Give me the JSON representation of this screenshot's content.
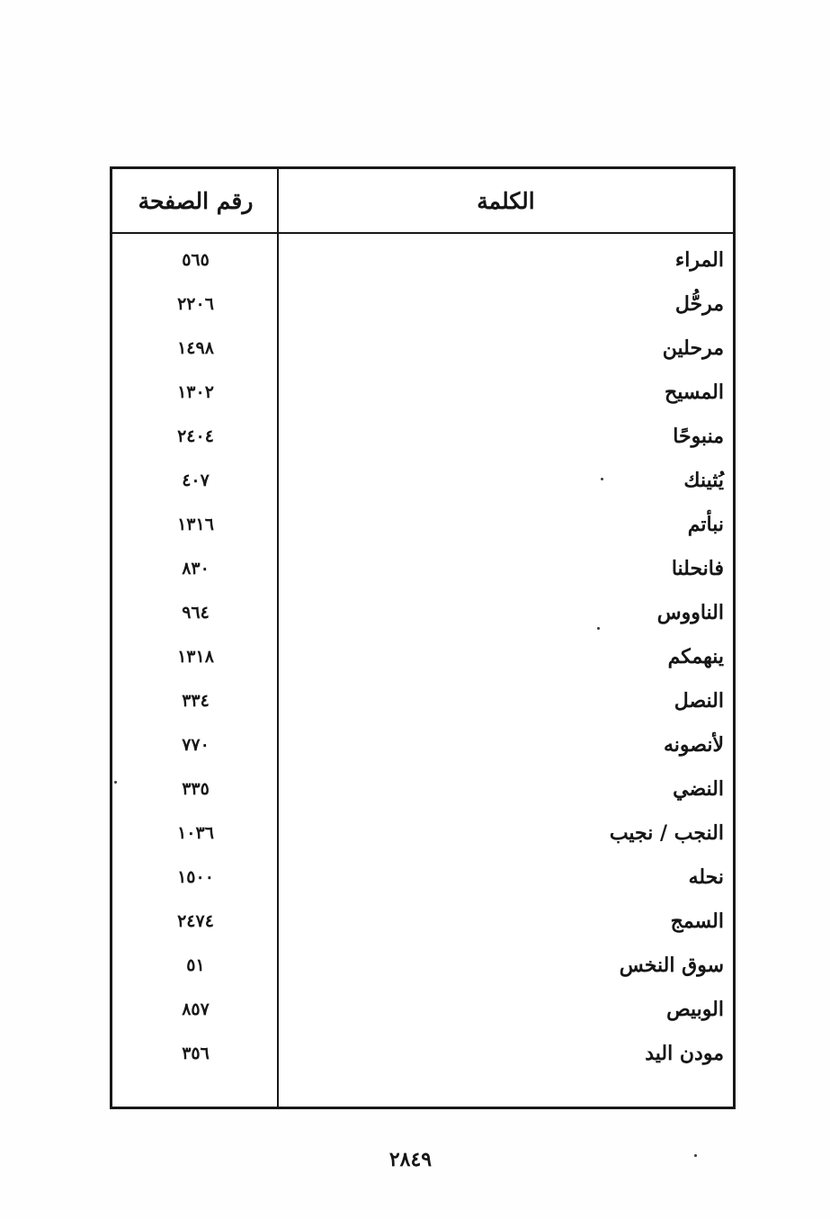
{
  "page": {
    "footer_page_number": "٢٨٤٩"
  },
  "table": {
    "headers": {
      "page_number": "رقم الصفحة",
      "word": "الكلمة"
    },
    "rows": [
      {
        "word": "المراء",
        "page": "٥٦٥"
      },
      {
        "word": "مرحُّل",
        "page": "٢٢٠٦"
      },
      {
        "word": "مرحلين",
        "page": "١٤٩٨"
      },
      {
        "word": "المسيح",
        "page": "١٣٠٢"
      },
      {
        "word": "منبوحًا",
        "page": "٢٤٠٤"
      },
      {
        "word": "يُثينك",
        "page": "٤٠٧"
      },
      {
        "word": "نبأتم",
        "page": "١٣١٦"
      },
      {
        "word": "فانحلنا",
        "page": "٨٣٠"
      },
      {
        "word": "الناووس",
        "page": "٩٦٤"
      },
      {
        "word": "ينهمكم",
        "page": "١٣١٨"
      },
      {
        "word": "النصل",
        "page": "٣٣٤"
      },
      {
        "word": "لأنصونه",
        "page": "٧٧٠"
      },
      {
        "word": "النضي",
        "page": "٣٣٥"
      },
      {
        "word": "النجب / نجيب",
        "page": "١٠٣٦"
      },
      {
        "word": "نحله",
        "page": "١٥٠٠"
      },
      {
        "word": "السمج",
        "page": "٢٤٧٤"
      },
      {
        "word": "سوق النخس",
        "page": "٥١"
      },
      {
        "word": "الوبيص",
        "page": "٨٥٧"
      },
      {
        "word": "مودن اليد",
        "page": "٣٥٦"
      }
    ]
  }
}
